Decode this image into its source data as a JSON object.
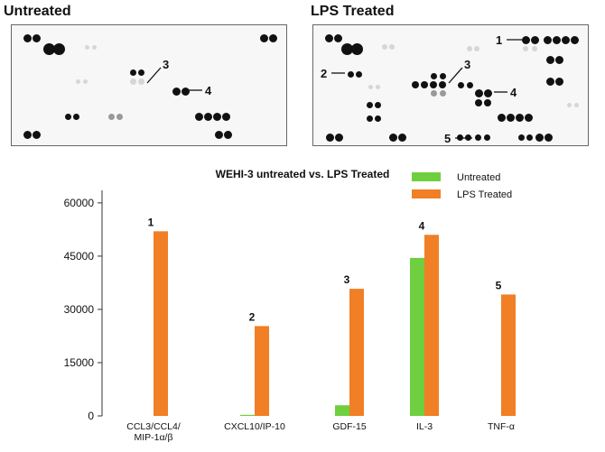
{
  "panels": {
    "untreated_title": "Untreated",
    "lps_title": "LPS Treated",
    "untreated_callouts": [
      "3",
      "4"
    ],
    "lps_callouts": [
      "1",
      "2",
      "3",
      "4",
      "5"
    ]
  },
  "chart_data": {
    "type": "bar",
    "title": "WEHI-3 untreated vs. LPS Treated",
    "categories": [
      "CCL3/CCL4/\nMIP-1α/β",
      "CXCL10/IP-10",
      "GDF-15",
      "IL-3",
      "TNF-α"
    ],
    "series": [
      {
        "name": "Untreated",
        "color": "#6fcf3f",
        "values": [
          0,
          300,
          3000,
          44500,
          0
        ]
      },
      {
        "name": "LPS Treated",
        "color": "#f07f25",
        "values": [
          52000,
          25300,
          35800,
          51000,
          34200
        ]
      }
    ],
    "bar_labels": [
      "1",
      "2",
      "3",
      "4",
      "5"
    ],
    "yticks": [
      0,
      15000,
      30000,
      45000,
      60000
    ],
    "ylim": [
      0,
      62000
    ],
    "legend_position": "top-right",
    "grid": false
  }
}
